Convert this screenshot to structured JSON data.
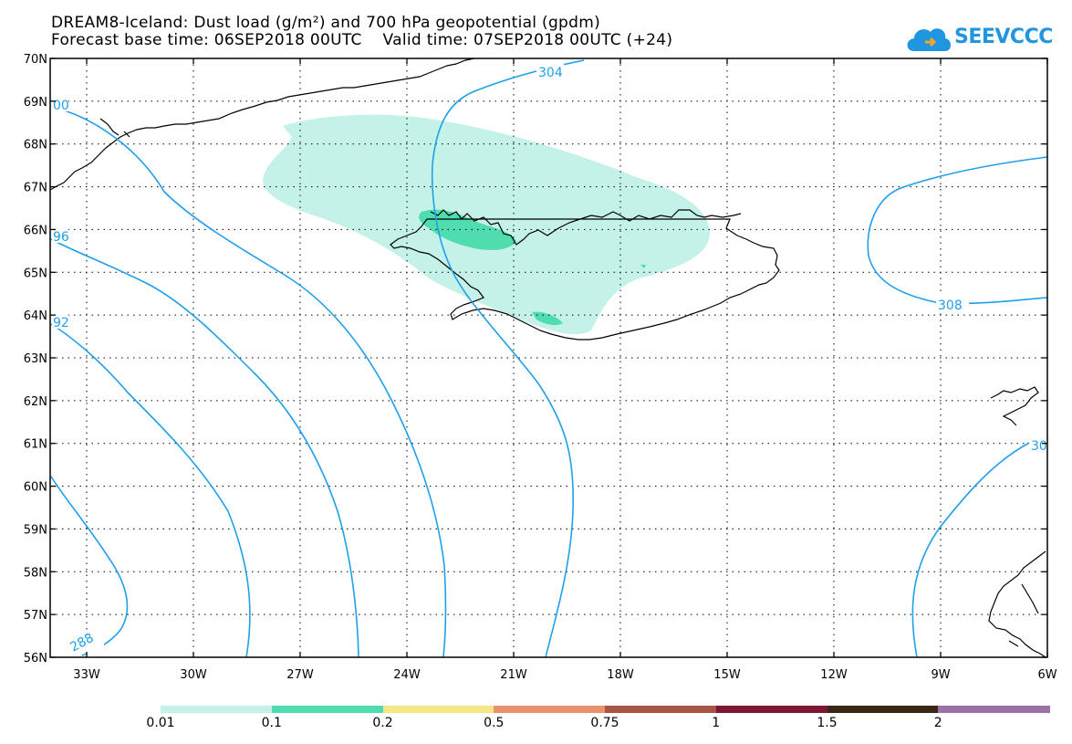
{
  "header": {
    "line1": "DREAM8-Iceland: Dust load (g/m²) and 700 hPa geopotential (gpdm)",
    "line2": "Forecast base time: 06SEP2018 00UTC    Valid time: 07SEP2018 00UTC (+24)"
  },
  "logo": {
    "text": "SEEVCCC",
    "icon": "cloud-icon"
  },
  "axes": {
    "lat_labels": [
      "70N",
      "69N",
      "68N",
      "67N",
      "66N",
      "65N",
      "64N",
      "63N",
      "62N",
      "61N",
      "60N",
      "59N",
      "58N",
      "57N",
      "56N"
    ],
    "lon_labels": [
      "33W",
      "30W",
      "27W",
      "24W",
      "21W",
      "18W",
      "15W",
      "12W",
      "9W",
      "6W"
    ]
  },
  "contour_labels": {
    "c304": "304",
    "c308": "308",
    "c300_left": "00",
    "c296": "96",
    "c292": "92",
    "c288": "288",
    "c30_right": "30"
  },
  "colorbar": {
    "labels": [
      "0.01",
      "0.1",
      "0.2",
      "0.5",
      "0.75",
      "1",
      "1.5",
      "2"
    ],
    "colors": [
      "#c4f2e8",
      "#4fdcae",
      "#f5e785",
      "#e9906d",
      "#a65544",
      "#7c1633",
      "#3b2616",
      "#9a72a8"
    ]
  },
  "colors": {
    "contour": "#1fa0ea",
    "dust_low": "#c4f2e8",
    "dust_mid": "#4fdcae",
    "coast": "#000000"
  }
}
